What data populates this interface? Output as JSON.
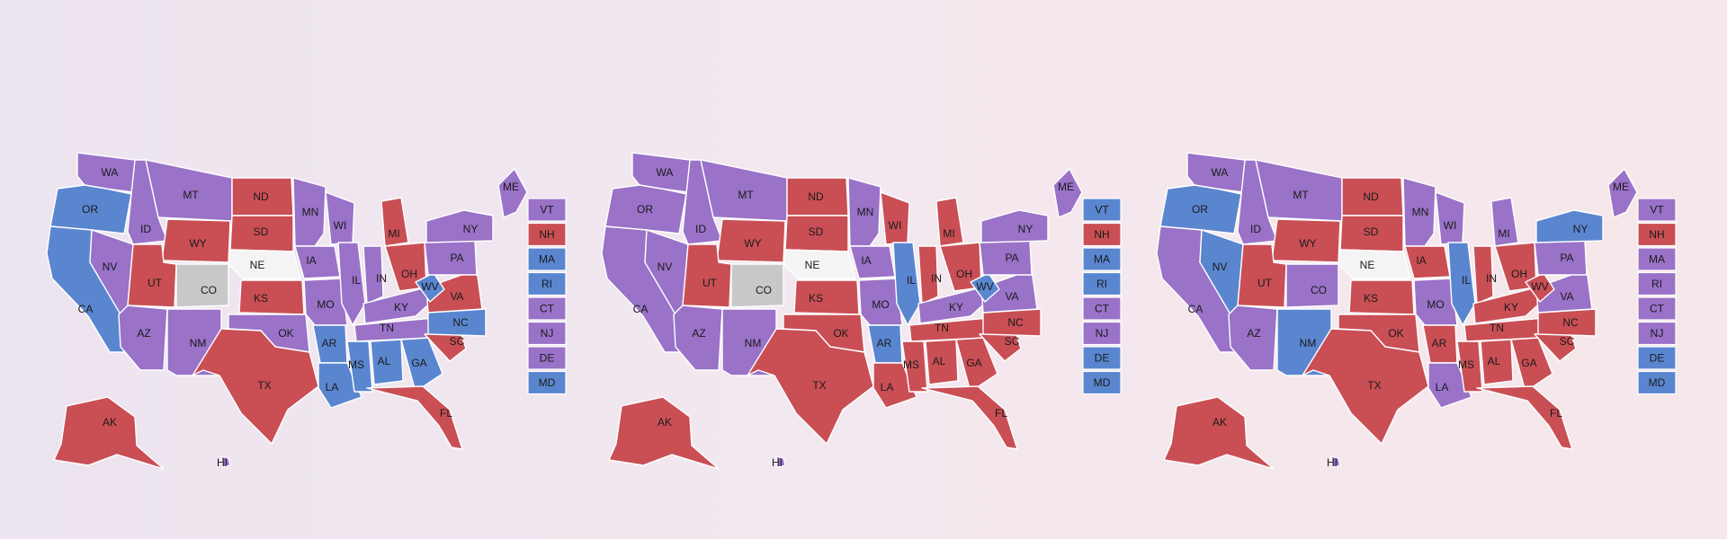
{
  "colors": {
    "R": "#c94f55",
    "D": "#5a86d0",
    "T": "#9a72c8",
    "W": "#f4f4f4",
    "G": "#c8c8c8"
  },
  "icons": [
    "state-shape",
    "state-box"
  ],
  "legend_boxes": [
    "VT",
    "NH",
    "MA",
    "RI",
    "CT",
    "NJ",
    "DE",
    "MD"
  ],
  "maps": [
    {
      "states": {
        "WA": "T",
        "OR": "D",
        "CA": "D",
        "ID": "T",
        "NV": "T",
        "MT": "T",
        "WY": "R",
        "UT": "R",
        "AZ": "T",
        "CO": "G",
        "NM": "T",
        "ND": "R",
        "SD": "R",
        "NE": "W",
        "KS": "R",
        "OK": "T",
        "TX": "R",
        "MN": "T",
        "IA": "T",
        "MO": "T",
        "AR": "D",
        "LA": "D",
        "WI": "T",
        "IL": "T",
        "MI": "R",
        "IN": "T",
        "OH": "R",
        "KY": "T",
        "TN": "T",
        "MS": "D",
        "AL": "D",
        "GA": "D",
        "FL": "R",
        "SC": "R",
        "NC": "D",
        "VA": "R",
        "WV": "D",
        "PA": "T",
        "NY": "T",
        "ME": "T",
        "AK": "R",
        "HI": "T"
      },
      "boxes": {
        "VT": "T",
        "NH": "R",
        "MA": "D",
        "RI": "D",
        "CT": "T",
        "NJ": "T",
        "DE": "T",
        "MD": "D"
      }
    },
    {
      "states": {
        "WA": "T",
        "OR": "T",
        "CA": "T",
        "ID": "T",
        "NV": "T",
        "MT": "T",
        "WY": "R",
        "UT": "R",
        "AZ": "T",
        "CO": "G",
        "NM": "T",
        "ND": "R",
        "SD": "R",
        "NE": "W",
        "KS": "R",
        "OK": "R",
        "TX": "R",
        "MN": "T",
        "IA": "T",
        "MO": "T",
        "AR": "D",
        "LA": "R",
        "WI": "R",
        "IL": "D",
        "MI": "R",
        "IN": "R",
        "OH": "R",
        "KY": "T",
        "TN": "R",
        "MS": "R",
        "AL": "R",
        "GA": "R",
        "FL": "R",
        "SC": "R",
        "NC": "R",
        "VA": "T",
        "WV": "D",
        "PA": "T",
        "NY": "T",
        "ME": "T",
        "AK": "R",
        "HI": "T"
      },
      "boxes": {
        "VT": "D",
        "NH": "R",
        "MA": "D",
        "RI": "D",
        "CT": "T",
        "NJ": "T",
        "DE": "D",
        "MD": "D"
      }
    },
    {
      "states": {
        "WA": "T",
        "OR": "D",
        "CA": "T",
        "ID": "T",
        "NV": "D",
        "MT": "T",
        "WY": "R",
        "UT": "R",
        "AZ": "T",
        "CO": "T",
        "NM": "D",
        "ND": "R",
        "SD": "R",
        "NE": "W",
        "KS": "R",
        "OK": "R",
        "TX": "R",
        "MN": "T",
        "IA": "R",
        "MO": "T",
        "AR": "R",
        "LA": "T",
        "WI": "T",
        "IL": "D",
        "MI": "T",
        "IN": "R",
        "OH": "R",
        "KY": "R",
        "TN": "R",
        "MS": "R",
        "AL": "R",
        "GA": "R",
        "FL": "R",
        "SC": "R",
        "NC": "R",
        "VA": "T",
        "WV": "R",
        "PA": "T",
        "NY": "D",
        "ME": "T",
        "AK": "R",
        "HI": "T"
      },
      "boxes": {
        "VT": "T",
        "NH": "R",
        "MA": "T",
        "RI": "T",
        "CT": "T",
        "NJ": "T",
        "DE": "D",
        "MD": "D"
      }
    }
  ]
}
